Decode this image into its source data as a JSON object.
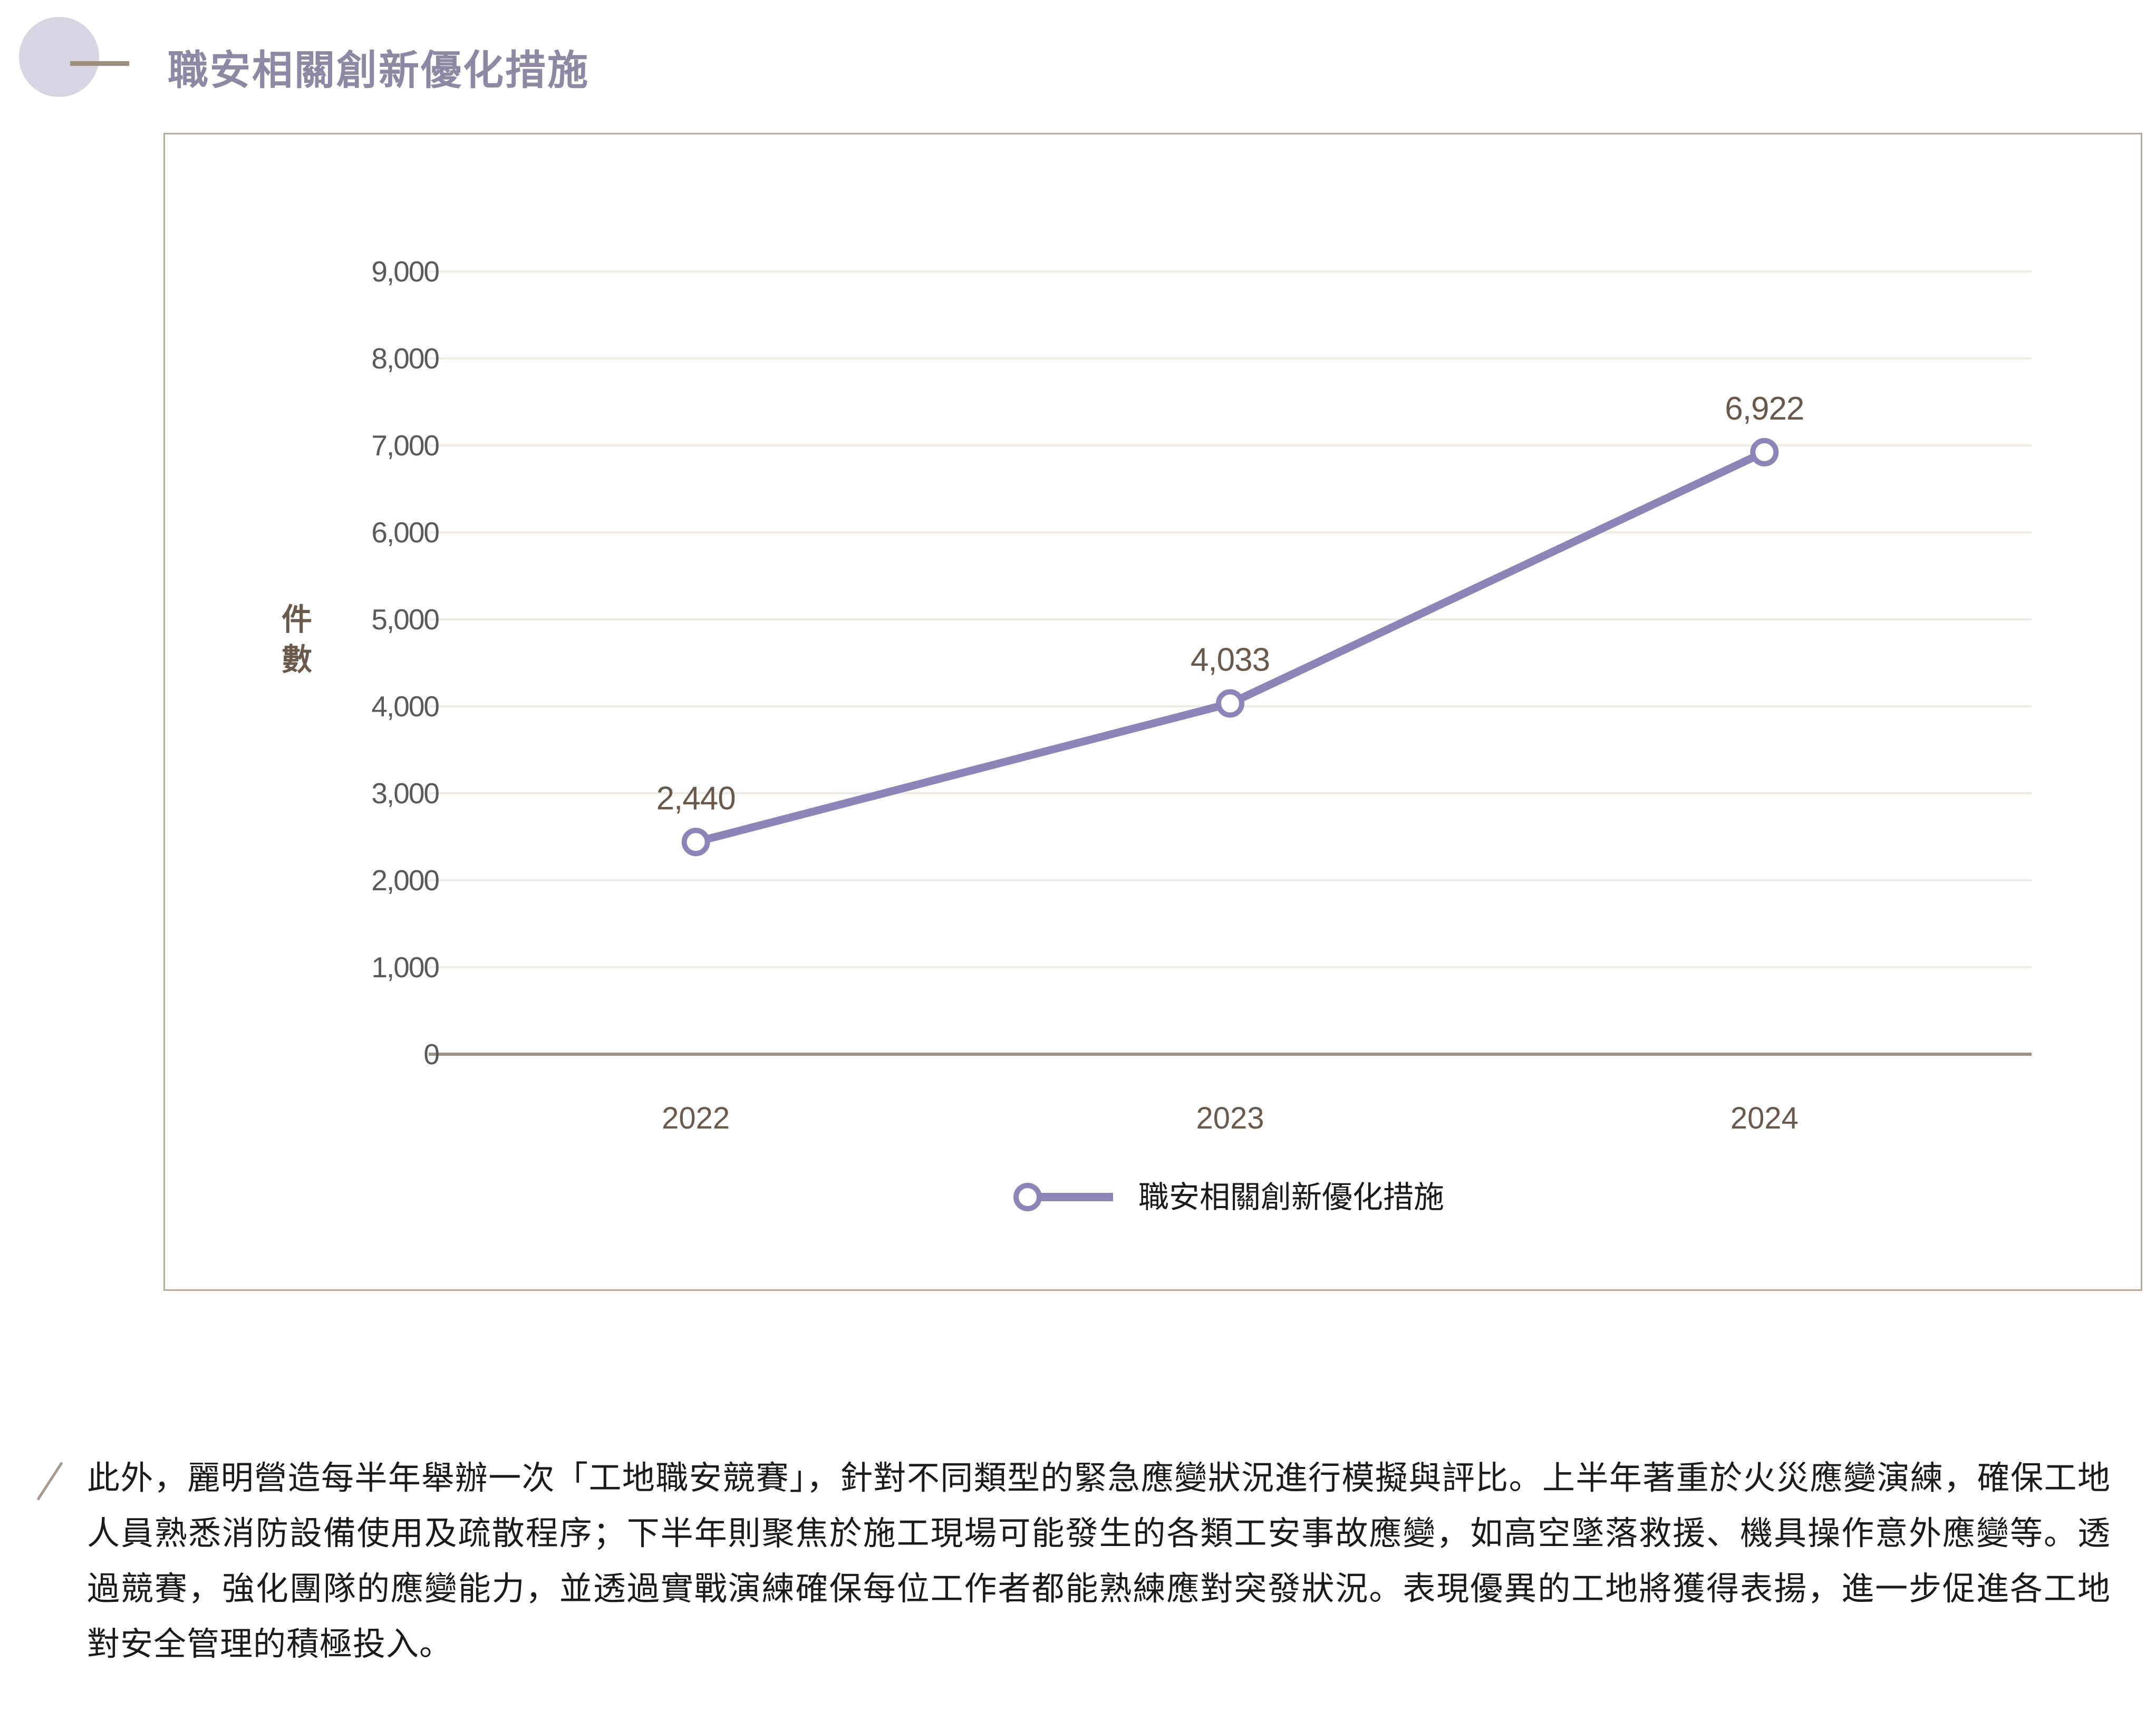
{
  "header": {
    "title": "職安相關創新優化措施"
  },
  "chart": {
    "y_axis_title": "件數",
    "legend_label": "職安相關創新優化措施"
  },
  "chart_data": {
    "type": "line",
    "title": "職安相關創新優化措施",
    "categories": [
      "2022",
      "2023",
      "2024"
    ],
    "series": [
      {
        "name": "職安相關創新優化措施",
        "values": [
          2440,
          4033,
          6922
        ]
      }
    ],
    "value_labels": [
      "2,440",
      "4,033",
      "6,922"
    ],
    "xlabel": "",
    "ylabel": "件數",
    "ylim": [
      0,
      9000
    ],
    "ytick_step": 1000,
    "y_ticks": [
      "0",
      "1,000",
      "2,000",
      "3,000",
      "4,000",
      "5,000",
      "6,000",
      "7,000",
      "8,000",
      "9,000"
    ],
    "grid": true,
    "legend_position": "bottom",
    "marker": "open-circle"
  },
  "paragraph": {
    "text": "此外，麗明營造每半年舉辦一次「工地職安競賽」，針對不同類型的緊急應變狀況進行模擬與評比。上半年著重於火災應變演練，確保工地人員熟悉消防設備使用及疏散程序；下半年則聚焦於施工現場可能發生的各類工安事故應變，如高空墜落救援、機具操作意外應變等。透過競賽，強化團隊的應變能力，並透過實戰演練確保每位工作者都能熟練應對突發狀況。表現優異的工地將獲得表揚，進一步促進各工地對安全管理的積極投入。"
  },
  "colors": {
    "series_line": "#8C86B8",
    "marker_fill": "#FFFFFF",
    "grid_line": "#EFECE7",
    "zero_axis": "#9C9184",
    "tick_label": "#58595B",
    "axis_label_brown": "#6B5A4B",
    "data_label": "#6A594B",
    "legend_text": "#1A1A1A",
    "chart_border": "#B3ABA0",
    "title_text": "#8E88A4",
    "deco_circle_fill": "#D8D5E3",
    "deco_line": "#9C8F7F",
    "paragraph_text": "#1B1B1B",
    "paragraph_slash": "#A59A8C"
  }
}
